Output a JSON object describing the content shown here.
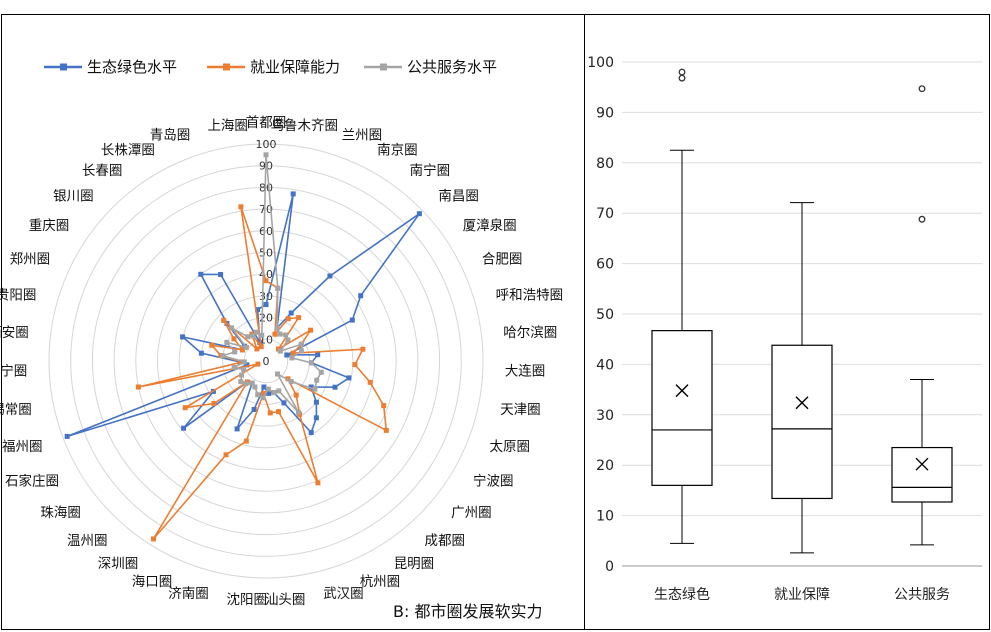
{
  "chart_data": [
    {
      "type": "radar",
      "caption": "B: 都市圈发展软实力",
      "rlim": [
        0,
        100
      ],
      "r_ticks": [
        0,
        10,
        20,
        30,
        40,
        50,
        60,
        70,
        80,
        90,
        100
      ],
      "categories": [
        "首都圈",
        "乌鲁木齐圈",
        "兰州圈",
        "南京圈",
        "南宁圈",
        "南昌圈",
        "厦漳泉圈",
        "合肥圈",
        "呼和浩特圈",
        "哈尔滨圈",
        "大连圈",
        "天津圈",
        "太原圈",
        "宁波圈",
        "广州圈",
        "成都圈",
        "昆明圈",
        "杭州圈",
        "武汉圈",
        "汕头圈",
        "沈阳圈",
        "济南圈",
        "海口圈",
        "深圳圈",
        "温州圈",
        "珠海圈",
        "石家庄圈",
        "福州圈",
        "苏锡常圈",
        "西宁圈",
        "西安圈",
        "贵阳圈",
        "郑州圈",
        "重庆圈",
        "银川圈",
        "长春圈",
        "长株潭圈",
        "青岛圈",
        "上海圈"
      ],
      "legend_position": "top",
      "series": [
        {
          "name": "生态绿色水平",
          "color": "#4472C4",
          "values": [
            26,
            78,
            16,
            25,
            49,
            98,
            53,
            44,
            10,
            24,
            21,
            39,
            34,
            24,
            30,
            35,
            39,
            21,
            15,
            15,
            12,
            23,
            34,
            12,
            13,
            49,
            28,
            98,
            9,
            12,
            30,
            40,
            12,
            12,
            25,
            50,
            45,
            9,
            24
          ]
        },
        {
          "name": "就业保障能力",
          "color": "#ED7D31",
          "values": [
            37,
            34,
            13,
            22,
            25,
            8,
            25,
            18,
            13,
            45,
            41,
            49,
            58,
            64,
            13,
            21,
            29,
            61,
            24,
            24,
            15,
            38,
            47,
            97,
            13,
            31,
            43,
            4,
            60,
            11,
            21,
            26,
            12,
            18,
            27,
            7,
            14,
            7,
            72
          ]
        },
        {
          "name": "公共服务水平",
          "color": "#A5A5A5",
          "values": [
            95,
            34,
            16,
            14,
            15,
            14,
            8,
            18,
            17,
            12,
            21,
            26,
            25,
            26,
            15,
            8,
            28,
            15,
            15,
            13,
            17,
            16,
            13,
            12,
            14,
            15,
            13,
            11,
            15,
            10,
            20,
            15,
            20,
            11,
            22,
            14,
            13,
            14,
            12
          ]
        }
      ]
    },
    {
      "type": "boxplot",
      "ylim": [
        0,
        100
      ],
      "y_ticks": [
        0,
        10,
        20,
        30,
        40,
        50,
        60,
        70,
        80,
        90,
        100
      ],
      "grid": true,
      "categories": [
        "生态绿色",
        "就业保障",
        "公共服务"
      ],
      "boxes": [
        {
          "min": 4.5,
          "q1": 16,
          "median": 27,
          "mean": 34.8,
          "q3": 46.7,
          "max": 82.5,
          "outliers": [
            96.8,
            98
          ]
        },
        {
          "min": 2.6,
          "q1": 13.4,
          "median": 27.2,
          "mean": 32.4,
          "q3": 43.8,
          "max": 72.1,
          "outliers": []
        },
        {
          "min": 4.2,
          "q1": 12.7,
          "median": 15.6,
          "mean": 20.2,
          "q3": 23.5,
          "max": 37,
          "outliers": [
            68.8,
            94.7
          ]
        }
      ]
    }
  ]
}
